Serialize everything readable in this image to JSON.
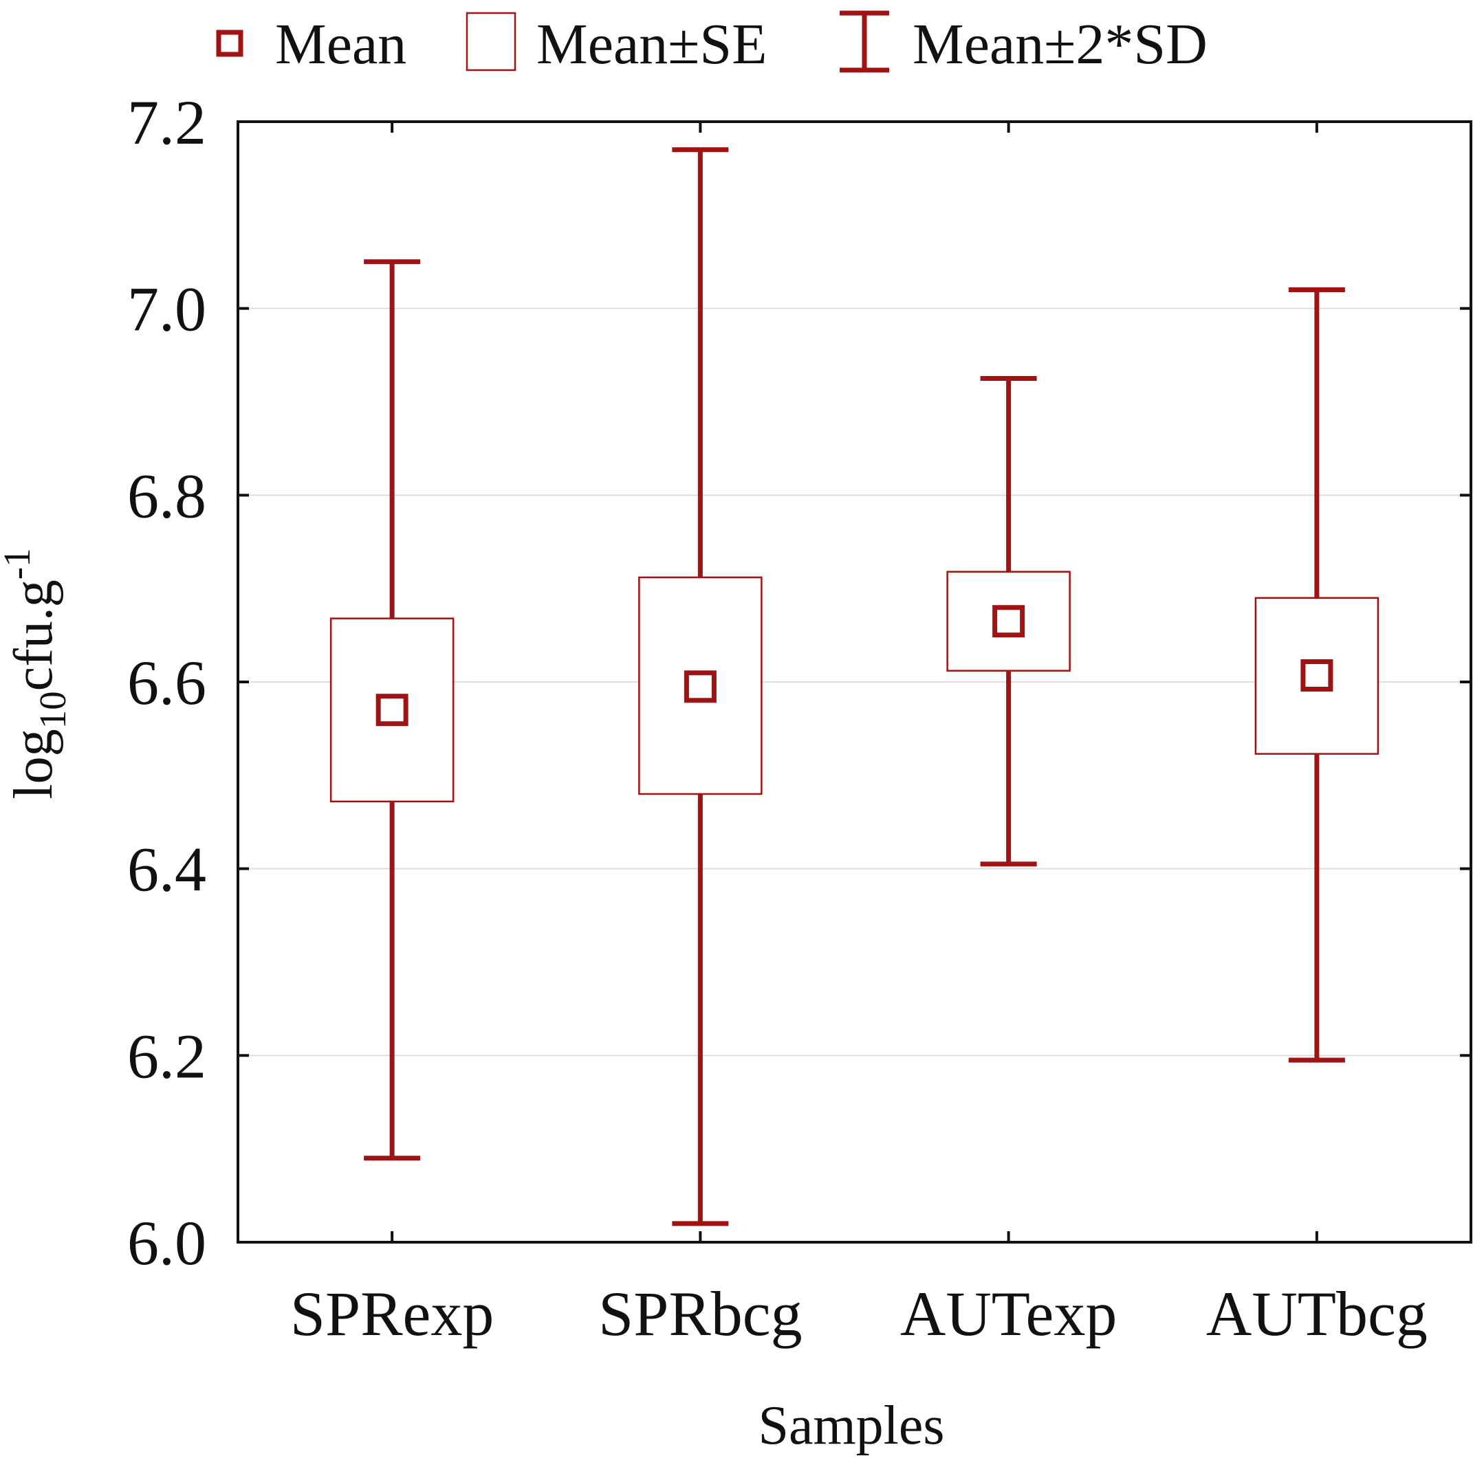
{
  "chart_data": {
    "type": "box",
    "title": "",
    "xlabel": "Samples",
    "ylabel": {
      "base": "log",
      "subscript": "10",
      "unit": "cfu.g",
      "superscript": "-1"
    },
    "ylim": [
      6.0,
      7.2
    ],
    "yticks": [
      "6.0",
      "6.2",
      "6.4",
      "6.6",
      "6.8",
      "7.0",
      "7.2"
    ],
    "grid": true,
    "categories": [
      "SPRexp",
      "SPRbcg",
      "AUTexp",
      "AUTbcg"
    ],
    "series": [
      {
        "name": "SPRexp",
        "mean": 6.57,
        "se_low": 6.472,
        "se_high": 6.668,
        "sd2_low": 6.09,
        "sd2_high": 7.05
      },
      {
        "name": "SPRbcg",
        "mean": 6.595,
        "se_low": 6.48,
        "se_high": 6.712,
        "sd2_low": 6.02,
        "sd2_high": 7.17
      },
      {
        "name": "AUTexp",
        "mean": 6.665,
        "se_low": 6.612,
        "se_high": 6.718,
        "sd2_low": 6.405,
        "sd2_high": 6.925
      },
      {
        "name": "AUTbcg",
        "mean": 6.607,
        "se_low": 6.523,
        "se_high": 6.69,
        "sd2_low": 6.195,
        "sd2_high": 7.02
      }
    ],
    "legend": {
      "position": "top",
      "entries": [
        {
          "symbol": "mean-square",
          "label": "Mean"
        },
        {
          "symbol": "se-box",
          "label": "Mean±SE"
        },
        {
          "symbol": "whisker",
          "label": "Mean±2*SD"
        }
      ]
    },
    "colors": {
      "series": "#a11212",
      "axis": "#111111",
      "grid": "#dddddd"
    }
  }
}
